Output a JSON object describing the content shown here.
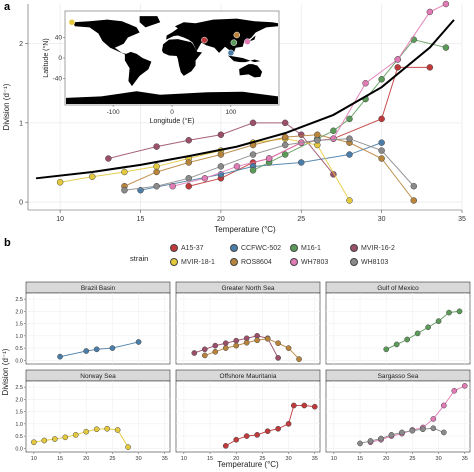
{
  "panel_labels": {
    "a": "a",
    "b": "b"
  },
  "legend": {
    "title": "strain",
    "items": [
      {
        "name": "A15-37",
        "color": "#c0393b"
      },
      {
        "name": "CCFWC-502",
        "color": "#4a7ea8"
      },
      {
        "name": "M16-1",
        "color": "#5c9a59"
      },
      {
        "name": "MVIR-16-2",
        "color": "#9b4f6a"
      },
      {
        "name": "MVIR-18-1",
        "color": "#e4c93e"
      },
      {
        "name": "ROS8604",
        "color": "#b8843b"
      },
      {
        "name": "WH7803",
        "color": "#e17bb5"
      },
      {
        "name": "WH8103",
        "color": "#8a8a8a"
      }
    ]
  },
  "chart_data": [
    {
      "type": "line",
      "panel": "a",
      "xlabel": "Temperature (°C)",
      "ylabel": "Division (d⁻¹)",
      "xlim": [
        8,
        35
      ],
      "ylim": [
        -0.1,
        2.5
      ],
      "xticks": [
        10,
        15,
        20,
        25,
        30,
        35
      ],
      "yticks": [
        0,
        1,
        2
      ],
      "grid": true,
      "trend": {
        "x": [
          8.5,
          12,
          15,
          18,
          21,
          24,
          27,
          30,
          33,
          34.5
        ],
        "y": [
          0.3,
          0.38,
          0.47,
          0.58,
          0.7,
          0.87,
          1.1,
          1.45,
          1.95,
          2.3
        ]
      },
      "series": [
        {
          "name": "A15-37",
          "color": "#c0393b",
          "x": [
            18,
            20,
            22,
            23,
            25,
            27,
            30,
            31,
            33
          ],
          "y": [
            0.2,
            0.3,
            0.5,
            0.55,
            0.75,
            0.8,
            1.05,
            1.7,
            1.7
          ]
        },
        {
          "name": "CCFWC-502",
          "color": "#4a7ea8",
          "x": [
            15,
            20,
            22,
            25,
            28,
            30
          ],
          "y": [
            0.15,
            0.35,
            0.45,
            0.5,
            0.6,
            0.75
          ]
        },
        {
          "name": "M16-1",
          "color": "#5c9a59",
          "x": [
            22,
            23,
            24,
            26,
            27,
            28,
            29,
            30,
            31,
            32,
            34
          ],
          "y": [
            0.4,
            0.5,
            0.6,
            0.8,
            0.9,
            1.05,
            1.3,
            1.55,
            1.8,
            2.05,
            1.95
          ]
        },
        {
          "name": "MVIR-16-2",
          "color": "#9b4f6a",
          "x": [
            13,
            16,
            18,
            20,
            22,
            24,
            25,
            27
          ],
          "y": [
            0.55,
            0.7,
            0.78,
            0.85,
            1.0,
            1.0,
            0.85,
            0.35
          ]
        },
        {
          "name": "MVIR-18-1",
          "color": "#e4c93e",
          "x": [
            10,
            12,
            14,
            16,
            18,
            20,
            22,
            24,
            26,
            28
          ],
          "y": [
            0.25,
            0.32,
            0.38,
            0.45,
            0.55,
            0.65,
            0.75,
            0.8,
            0.72,
            0.02
          ]
        },
        {
          "name": "ROS8604",
          "color": "#b8843b",
          "x": [
            14,
            16,
            18,
            20,
            22,
            24,
            26,
            28,
            30,
            32
          ],
          "y": [
            0.2,
            0.38,
            0.5,
            0.6,
            0.72,
            0.82,
            0.85,
            0.75,
            0.55,
            0.02
          ]
        },
        {
          "name": "WH7803",
          "color": "#e17bb5",
          "x": [
            17,
            19,
            21,
            23,
            25,
            27,
            29,
            31,
            33,
            34
          ],
          "y": [
            0.2,
            0.3,
            0.45,
            0.55,
            0.75,
            0.8,
            1.5,
            1.8,
            2.4,
            2.5
          ]
        },
        {
          "name": "WH8103",
          "color": "#8a8a8a",
          "x": [
            14,
            16,
            18,
            20,
            22,
            24,
            26,
            28,
            30,
            32
          ],
          "y": [
            0.15,
            0.2,
            0.3,
            0.45,
            0.6,
            0.72,
            0.78,
            0.8,
            0.65,
            0.2
          ]
        }
      ]
    },
    {
      "type": "line",
      "panel": "b",
      "xlabel": "Temperature (°C)",
      "ylabel": "Division (d⁻¹)",
      "xlim": [
        8.5,
        36
      ],
      "ylim": [
        -0.15,
        2.75
      ],
      "xticks": [
        10,
        15,
        20,
        25,
        30,
        35
      ],
      "yticks": [
        0.0,
        0.5,
        1.0,
        1.5,
        2.0,
        2.5
      ],
      "facets": [
        {
          "title": "Brazil Basin",
          "series": [
            {
              "name": "CCFWC-502",
              "color": "#4a7ea8",
              "x": [
                15,
                20,
                22,
                25,
                30
              ],
              "y": [
                0.15,
                0.38,
                0.45,
                0.5,
                0.75
              ]
            }
          ]
        },
        {
          "title": "Greater North Sea",
          "series": [
            {
              "name": "MVIR-16-2",
              "color": "#9b4f6a",
              "x": [
                12,
                14,
                16,
                18,
                20,
                22,
                24,
                26,
                28
              ],
              "y": [
                0.3,
                0.45,
                0.6,
                0.7,
                0.8,
                0.9,
                1.0,
                0.9,
                0.1
              ]
            },
            {
              "name": "ROS8604",
              "color": "#b8843b",
              "x": [
                14,
                16,
                18,
                20,
                22,
                24,
                26,
                28,
                30,
                32
              ],
              "y": [
                0.2,
                0.35,
                0.5,
                0.6,
                0.72,
                0.82,
                0.88,
                0.7,
                0.5,
                0.05
              ]
            }
          ]
        },
        {
          "title": "Gulf of Mexico",
          "series": [
            {
              "name": "M16-1",
              "color": "#5c9a59",
              "x": [
                20,
                22,
                24,
                26,
                28,
                30,
                32,
                34
              ],
              "y": [
                0.45,
                0.65,
                0.85,
                1.1,
                1.35,
                1.6,
                1.95,
                2.0
              ]
            }
          ]
        },
        {
          "title": "Norway Sea",
          "series": [
            {
              "name": "MVIR-18-1",
              "color": "#e4c93e",
              "x": [
                10,
                12,
                14,
                16,
                18,
                20,
                22,
                24,
                26,
                28
              ],
              "y": [
                0.25,
                0.32,
                0.38,
                0.45,
                0.55,
                0.68,
                0.78,
                0.8,
                0.75,
                0.05
              ]
            }
          ]
        },
        {
          "title": "Offshore Mauritania",
          "series": [
            {
              "name": "A15-37",
              "color": "#c0393b",
              "x": [
                18,
                20,
                22,
                24,
                26,
                28,
                30,
                31,
                33,
                35
              ],
              "y": [
                0.1,
                0.35,
                0.5,
                0.55,
                0.7,
                0.8,
                1.0,
                1.75,
                1.75,
                1.7
              ]
            }
          ]
        },
        {
          "title": "Sargasso Sea",
          "series": [
            {
              "name": "WH7803",
              "color": "#e17bb5",
              "x": [
                17,
                19,
                21,
                23,
                25,
                27,
                29,
                31,
                33,
                35
              ],
              "y": [
                0.25,
                0.35,
                0.5,
                0.6,
                0.75,
                0.85,
                1.2,
                1.75,
                2.35,
                2.55
              ]
            },
            {
              "name": "WH8103",
              "color": "#8a8a8a",
              "x": [
                15,
                17,
                19,
                21,
                23,
                25,
                27,
                29,
                31
              ],
              "y": [
                0.2,
                0.3,
                0.4,
                0.55,
                0.65,
                0.72,
                0.78,
                0.82,
                0.65
              ]
            }
          ]
        }
      ]
    }
  ],
  "inset_map": {
    "xlabel": "Longitude (°E)",
    "ylabel": "Latitude (°N)",
    "xticks": [
      -100,
      0,
      100
    ],
    "yticks": [
      40,
      0,
      -40
    ],
    "land_color": "#000000",
    "ocean_color": "#ffffff",
    "stations": [
      {
        "color": "#e4c93e",
        "lon": -170,
        "lat": 70
      },
      {
        "color": "#c0393b",
        "lon": 55,
        "lat": 35
      },
      {
        "color": "#4a7ea8",
        "lon": 100,
        "lat": 10
      },
      {
        "color": "#5c9a59",
        "lon": 105,
        "lat": 30
      },
      {
        "color": "#e17bb5",
        "lon": 128,
        "lat": 32
      },
      {
        "color": "#b8843b",
        "lon": 110,
        "lat": 45
      }
    ]
  }
}
